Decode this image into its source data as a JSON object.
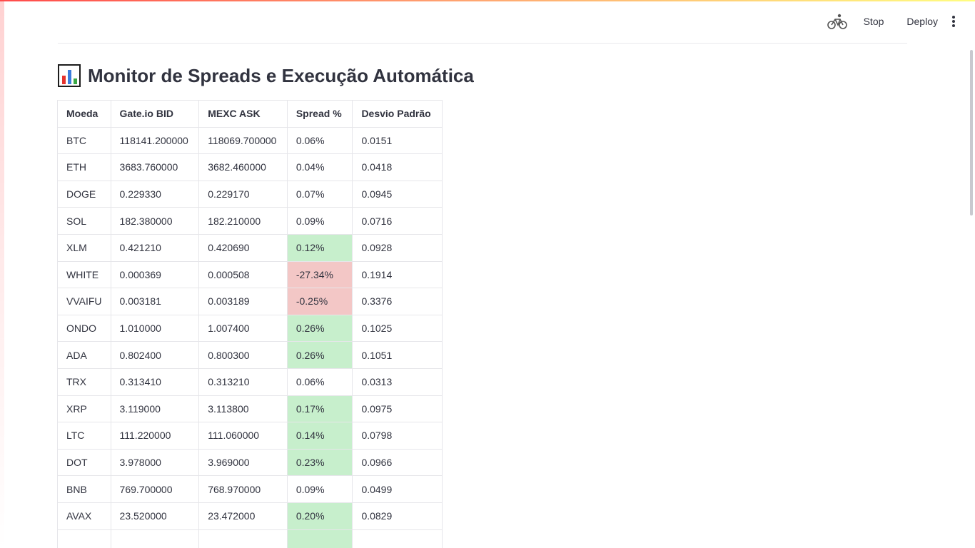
{
  "toolbar": {
    "stop_label": "Stop",
    "deploy_label": "Deploy",
    "running_icon": "bicycle-running-icon",
    "menu_icon": "kebab-menu-icon"
  },
  "page": {
    "title": "Monitor de Spreads e Execução Automática",
    "title_icon": "bar-chart-icon"
  },
  "colors": {
    "positive_highlight": "#c7efcc",
    "negative_highlight": "#f3c7c6",
    "accent_gradient_start": "#ff4b4b",
    "accent_gradient_end": "#fffd80"
  },
  "table": {
    "headers": [
      "Moeda",
      "Gate.io BID",
      "MEXC ASK",
      "Spread %",
      "Desvio Padrão"
    ],
    "rows": [
      {
        "coin": "BTC",
        "bid": "118141.200000",
        "ask": "118069.700000",
        "spread": "0.06%",
        "std": "0.0151",
        "highlight": "none"
      },
      {
        "coin": "ETH",
        "bid": "3683.760000",
        "ask": "3682.460000",
        "spread": "0.04%",
        "std": "0.0418",
        "highlight": "none"
      },
      {
        "coin": "DOGE",
        "bid": "0.229330",
        "ask": "0.229170",
        "spread": "0.07%",
        "std": "0.0945",
        "highlight": "none"
      },
      {
        "coin": "SOL",
        "bid": "182.380000",
        "ask": "182.210000",
        "spread": "0.09%",
        "std": "0.0716",
        "highlight": "none"
      },
      {
        "coin": "XLM",
        "bid": "0.421210",
        "ask": "0.420690",
        "spread": "0.12%",
        "std": "0.0928",
        "highlight": "pos"
      },
      {
        "coin": "WHITE",
        "bid": "0.000369",
        "ask": "0.000508",
        "spread": "-27.34%",
        "std": "0.1914",
        "highlight": "neg"
      },
      {
        "coin": "VVAIFU",
        "bid": "0.003181",
        "ask": "0.003189",
        "spread": "-0.25%",
        "std": "0.3376",
        "highlight": "neg"
      },
      {
        "coin": "ONDO",
        "bid": "1.010000",
        "ask": "1.007400",
        "spread": "0.26%",
        "std": "0.1025",
        "highlight": "pos"
      },
      {
        "coin": "ADA",
        "bid": "0.802400",
        "ask": "0.800300",
        "spread": "0.26%",
        "std": "0.1051",
        "highlight": "pos"
      },
      {
        "coin": "TRX",
        "bid": "0.313410",
        "ask": "0.313210",
        "spread": "0.06%",
        "std": "0.0313",
        "highlight": "none"
      },
      {
        "coin": "XRP",
        "bid": "3.119000",
        "ask": "3.113800",
        "spread": "0.17%",
        "std": "0.0975",
        "highlight": "pos"
      },
      {
        "coin": "LTC",
        "bid": "111.220000",
        "ask": "111.060000",
        "spread": "0.14%",
        "std": "0.0798",
        "highlight": "pos"
      },
      {
        "coin": "DOT",
        "bid": "3.978000",
        "ask": "3.969000",
        "spread": "0.23%",
        "std": "0.0966",
        "highlight": "pos"
      },
      {
        "coin": "BNB",
        "bid": "769.700000",
        "ask": "768.970000",
        "spread": "0.09%",
        "std": "0.0499",
        "highlight": "none"
      },
      {
        "coin": "AVAX",
        "bid": "23.520000",
        "ask": "23.472000",
        "spread": "0.20%",
        "std": "0.0829",
        "highlight": "pos"
      },
      {
        "coin": "",
        "bid": "",
        "ask": "",
        "spread": "",
        "std": "",
        "highlight": "pos"
      }
    ]
  }
}
